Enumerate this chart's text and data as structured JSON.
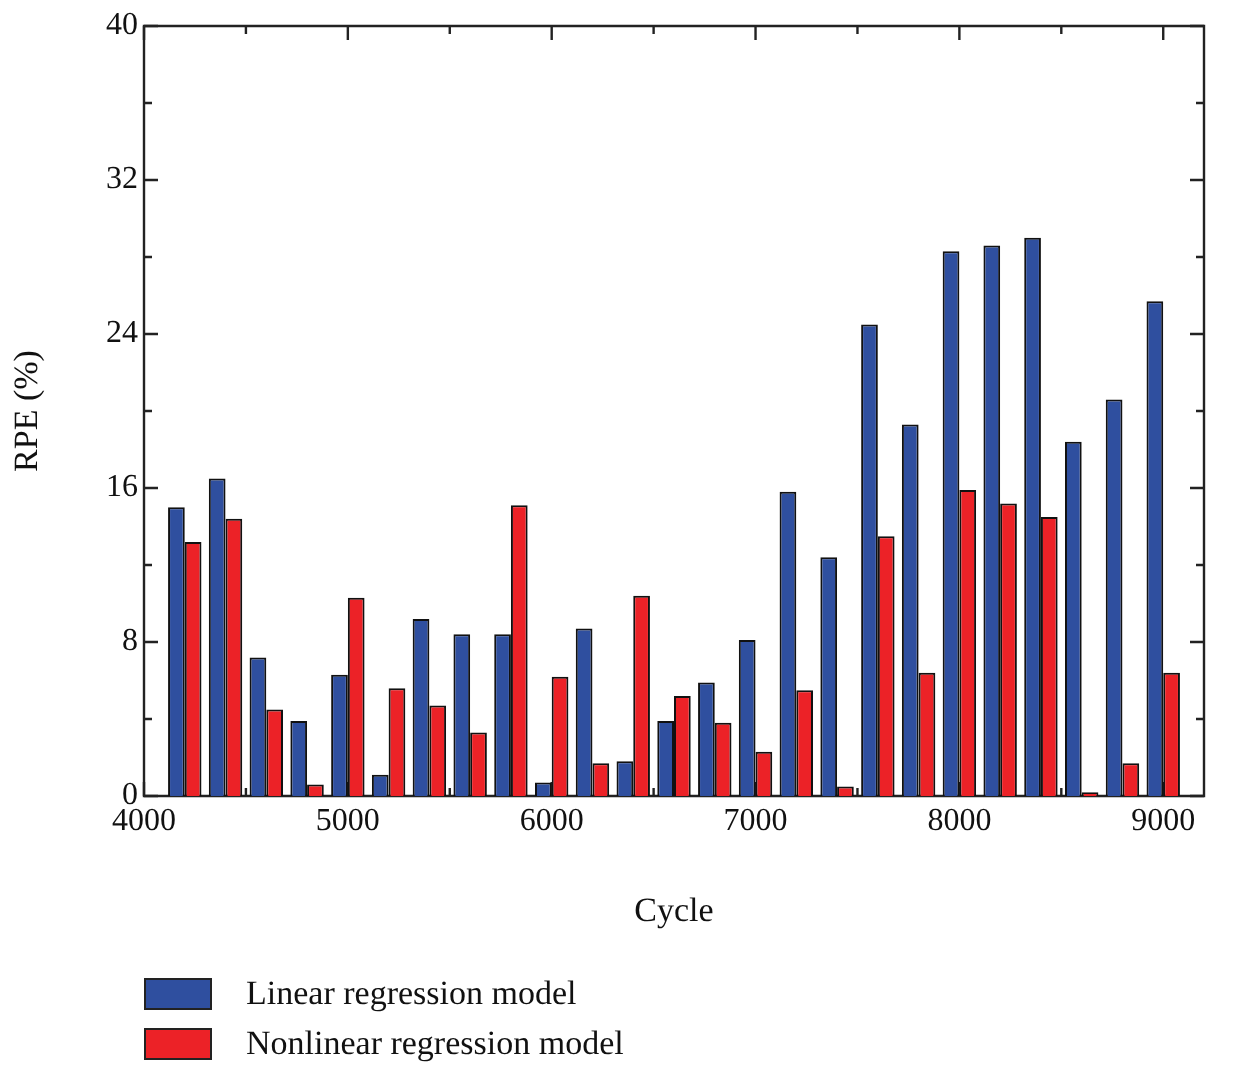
{
  "chart_data": {
    "type": "bar",
    "xlabel": "Cycle",
    "ylabel": "RPE (%)",
    "x": [
      4200,
      4400,
      4600,
      4800,
      5000,
      5200,
      5400,
      5600,
      5800,
      6000,
      6200,
      6400,
      6600,
      6800,
      7000,
      7200,
      7400,
      7600,
      7800,
      8000,
      8200,
      8400,
      8600,
      8800,
      9000
    ],
    "series": [
      {
        "name": "Linear regression model",
        "color": "#2f4f9f",
        "values": [
          15.0,
          16.5,
          7.2,
          3.9,
          6.3,
          1.1,
          9.2,
          8.4,
          8.4,
          0.7,
          8.7,
          1.8,
          3.9,
          5.9,
          8.1,
          15.8,
          12.4,
          24.5,
          19.3,
          28.3,
          28.6,
          29.0,
          18.4,
          20.6,
          25.7
        ]
      },
      {
        "name": "Nonlinear regression model",
        "color": "#ec2227",
        "values": [
          13.2,
          14.4,
          4.5,
          0.6,
          10.3,
          5.6,
          4.7,
          3.3,
          15.1,
          6.2,
          1.7,
          10.4,
          5.2,
          3.8,
          2.3,
          5.5,
          0.5,
          13.5,
          6.4,
          15.9,
          15.2,
          14.5,
          0.2,
          1.7,
          6.4
        ]
      }
    ],
    "xlim": [
      4000,
      9200
    ],
    "xticks": [
      4000,
      {
        "value": 4500,
        "label": null
      },
      5000,
      {
        "value": 5500,
        "label": null
      },
      6000,
      {
        "value": 6500,
        "label": null
      },
      7000,
      {
        "value": 7500,
        "label": null
      },
      8000,
      {
        "value": 8500,
        "label": null
      },
      9000
    ],
    "ylim": [
      0,
      40
    ],
    "yticks": [
      0,
      {
        "value": 4,
        "label": null
      },
      8,
      {
        "value": 12,
        "label": null
      },
      16,
      {
        "value": 20,
        "label": null
      },
      24,
      {
        "value": 28,
        "label": null
      },
      32,
      {
        "value": 36,
        "label": null
      },
      40
    ],
    "grid": false,
    "legend": "bottom left"
  }
}
